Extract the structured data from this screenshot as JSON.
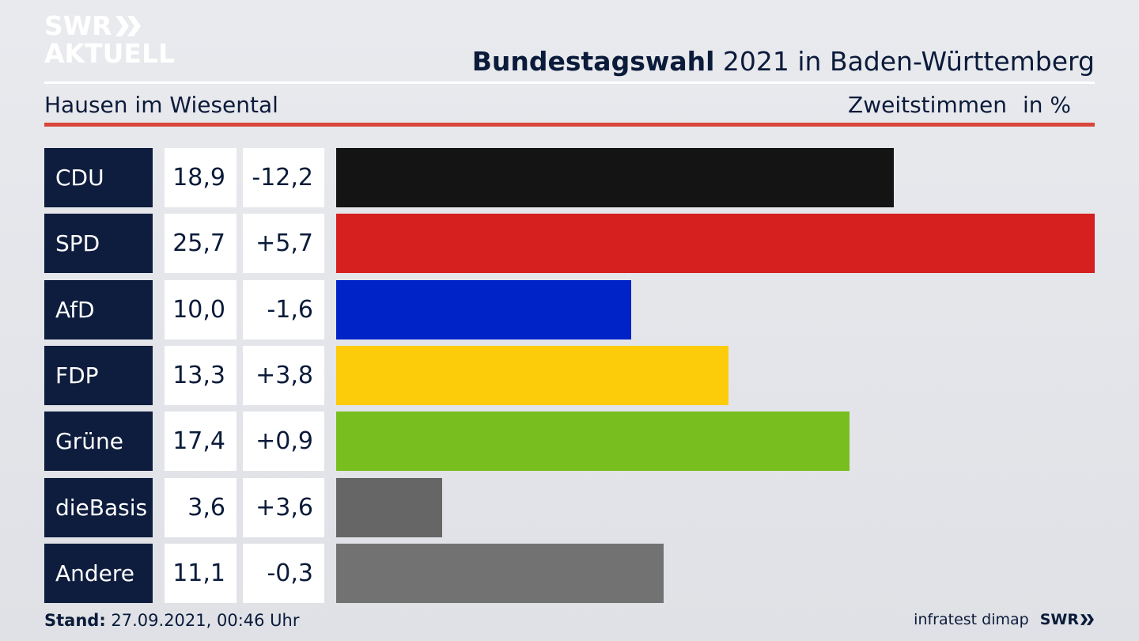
{
  "logo": {
    "line1": "SWR",
    "line2": "AKTUELL"
  },
  "header": {
    "title_bold": "Bundestagswahl",
    "title_rest": " 2021 in Baden-Württemberg",
    "subtitle": "Hausen im Wiesental",
    "measure": "Zweitstimmen",
    "unit": "in %"
  },
  "chart_data": {
    "type": "bar",
    "orientation": "horizontal",
    "categories": [
      "CDU",
      "SPD",
      "AfD",
      "FDP",
      "Grüne",
      "dieBasis",
      "Andere"
    ],
    "values": [
      18.9,
      25.7,
      10.0,
      13.3,
      17.4,
      3.6,
      11.1
    ],
    "value_labels": [
      "18,9",
      "25,7",
      "10,0",
      "13,3",
      "17,4",
      "3,6",
      "11,1"
    ],
    "change_labels": [
      "-12,2",
      "+5,7",
      "-1,6",
      "+3,8",
      "+0,9",
      "+3,6",
      "-0,3"
    ],
    "changes": [
      -12.2,
      5.7,
      -1.6,
      3.8,
      0.9,
      3.6,
      -0.3
    ],
    "colors": [
      "#141414",
      "#d62020",
      "#0023c8",
      "#fccb0a",
      "#78be1e",
      "#666666",
      "#727272"
    ],
    "xlim": [
      0,
      25.7
    ],
    "grid": false
  },
  "footer": {
    "stand_label": "Stand:",
    "stand_value": " 27.09.2021, 00:46 Uhr",
    "source": "infratest dimap",
    "brand": "SWR"
  }
}
